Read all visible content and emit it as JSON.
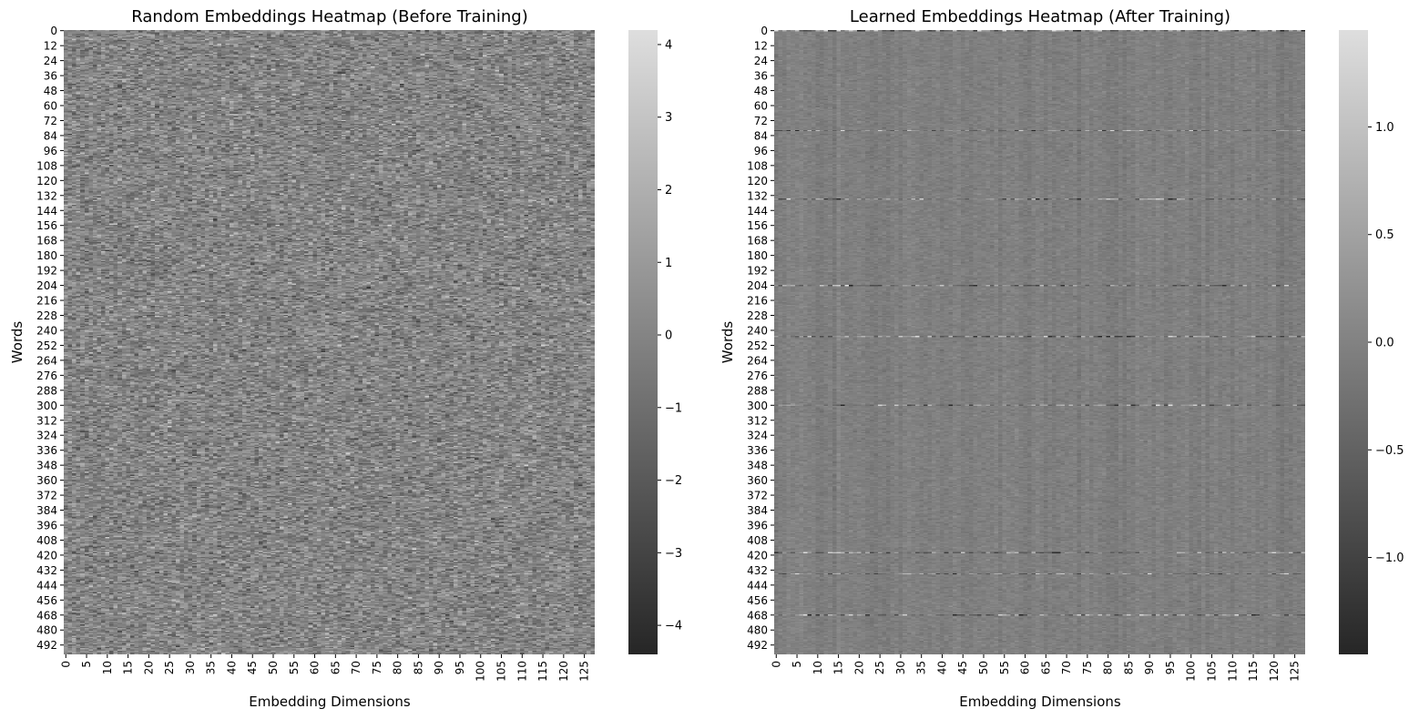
{
  "chart_data": [
    {
      "type": "heatmap",
      "title": "Random Embeddings Heatmap (Before Training)",
      "xlabel": "Embedding Dimensions",
      "ylabel": "Words",
      "rows": 500,
      "cols": 128,
      "x_ticks": [
        "0",
        "5",
        "10",
        "15",
        "20",
        "25",
        "30",
        "35",
        "40",
        "45",
        "50",
        "55",
        "60",
        "65",
        "70",
        "75",
        "80",
        "85",
        "90",
        "95",
        "100",
        "105",
        "110",
        "115",
        "120",
        "125"
      ],
      "y_ticks": [
        "0",
        "12",
        "24",
        "36",
        "48",
        "60",
        "72",
        "84",
        "96",
        "108",
        "120",
        "132",
        "144",
        "156",
        "168",
        "180",
        "192",
        "204",
        "216",
        "228",
        "240",
        "252",
        "264",
        "276",
        "288",
        "300",
        "312",
        "324",
        "336",
        "348",
        "360",
        "372",
        "384",
        "396",
        "408",
        "420",
        "432",
        "444",
        "456",
        "468",
        "480",
        "492"
      ],
      "colorbar": {
        "vmin": -4.4,
        "vmax": 4.2,
        "ticks": [
          -4,
          -3,
          -2,
          -1,
          0,
          1,
          2,
          3,
          4
        ],
        "tick_labels": [
          "−4",
          "−3",
          "−2",
          "−1",
          "0",
          "1",
          "2",
          "3",
          "4"
        ]
      },
      "value_distribution": {
        "mean": 0.0,
        "std": 1.0
      },
      "colormap": {
        "low": "#262626",
        "high": "#dedede"
      }
    },
    {
      "type": "heatmap",
      "title": "Learned Embeddings Heatmap (After Training)",
      "xlabel": "Embedding Dimensions",
      "ylabel": "Words",
      "rows": 500,
      "cols": 128,
      "x_ticks": [
        "0",
        "5",
        "10",
        "15",
        "20",
        "25",
        "30",
        "35",
        "40",
        "45",
        "50",
        "55",
        "60",
        "65",
        "70",
        "75",
        "80",
        "85",
        "90",
        "95",
        "100",
        "105",
        "110",
        "115",
        "120",
        "125"
      ],
      "y_ticks": [
        "0",
        "12",
        "24",
        "36",
        "48",
        "60",
        "72",
        "84",
        "96",
        "108",
        "120",
        "132",
        "144",
        "156",
        "168",
        "180",
        "192",
        "204",
        "216",
        "228",
        "240",
        "252",
        "264",
        "276",
        "288",
        "300",
        "312",
        "324",
        "336",
        "348",
        "360",
        "372",
        "384",
        "396",
        "408",
        "420",
        "432",
        "444",
        "456",
        "468",
        "480",
        "492"
      ],
      "colorbar": {
        "vmin": -1.45,
        "vmax": 1.45,
        "ticks": [
          -1.0,
          -0.5,
          0.0,
          0.5,
          1.0
        ],
        "tick_labels": [
          "−1.0",
          "−0.5",
          "0.0",
          "0.5",
          "1.0"
        ]
      },
      "value_distribution": {
        "mean": -0.05,
        "std": 0.08
      },
      "highlight_rows": [
        0,
        80,
        135,
        204,
        245,
        300,
        418,
        435,
        468
      ],
      "colormap": {
        "low": "#262626",
        "high": "#dedede"
      }
    }
  ]
}
